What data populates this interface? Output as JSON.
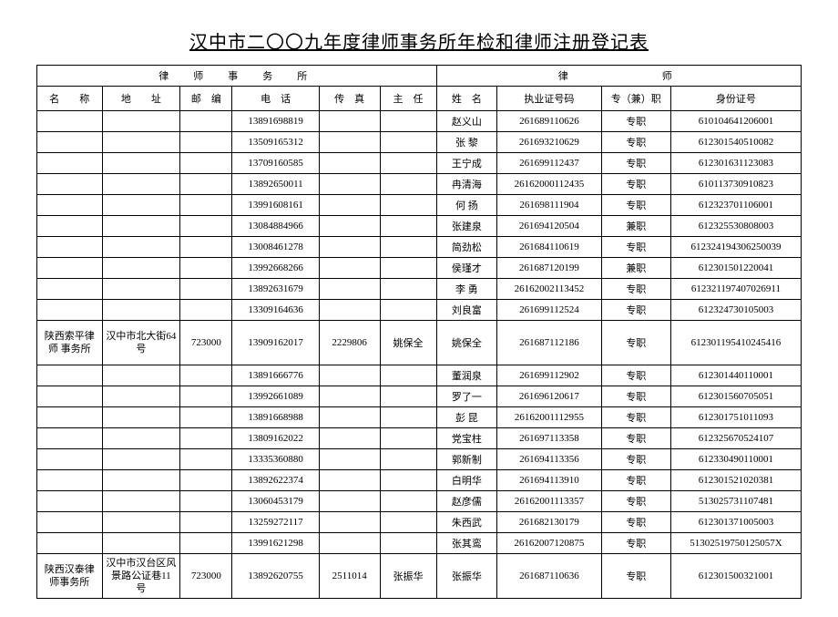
{
  "title": "汉中市二〇〇九年度律师事务所年检和律师注册登记表",
  "group_headers": {
    "left": "律　师　事　务　所",
    "right": "律　　　　　师"
  },
  "columns": {
    "name": "名　　称",
    "addr": "地　　址",
    "zip": "邮　编",
    "tel": "电　话",
    "fax": "传　真",
    "director": "主　任",
    "lname": "姓　名",
    "license": "执业证号码",
    "job": "专（兼）职",
    "id": "身份证号"
  },
  "rows": [
    {
      "name": "",
      "addr": "",
      "zip": "",
      "tel": "13891698819",
      "fax": "",
      "director": "",
      "lname": "赵义山",
      "license": "261689110626",
      "job": "专职",
      "id": "610104641206001"
    },
    {
      "name": "",
      "addr": "",
      "zip": "",
      "tel": "13509165312",
      "fax": "",
      "director": "",
      "lname": "张 黎",
      "license": "261693210629",
      "job": "专职",
      "id": "612301540510082"
    },
    {
      "name": "",
      "addr": "",
      "zip": "",
      "tel": "13709160585",
      "fax": "",
      "director": "",
      "lname": "王宁成",
      "license": "261699112437",
      "job": "专职",
      "id": "612301631123083"
    },
    {
      "name": "",
      "addr": "",
      "zip": "",
      "tel": "13892650011",
      "fax": "",
      "director": "",
      "lname": "冉清海",
      "license": "26162000112435",
      "job": "专职",
      "id": "610113730910823"
    },
    {
      "name": "",
      "addr": "",
      "zip": "",
      "tel": "13991608161",
      "fax": "",
      "director": "",
      "lname": "何 扬",
      "license": "261698111904",
      "job": "专职",
      "id": "612323701106001"
    },
    {
      "name": "",
      "addr": "",
      "zip": "",
      "tel": "13084884966",
      "fax": "",
      "director": "",
      "lname": "张建泉",
      "license": "261694120504",
      "job": "兼职",
      "id": "612325530808003"
    },
    {
      "name": "",
      "addr": "",
      "zip": "",
      "tel": "13008461278",
      "fax": "",
      "director": "",
      "lname": "简劲松",
      "license": "261684110619",
      "job": "专职",
      "id": "612324194306250039"
    },
    {
      "name": "",
      "addr": "",
      "zip": "",
      "tel": "13992668266",
      "fax": "",
      "director": "",
      "lname": "侯瑾才",
      "license": "261687120199",
      "job": "兼职",
      "id": "612301501220041"
    },
    {
      "name": "",
      "addr": "",
      "zip": "",
      "tel": "13892631679",
      "fax": "",
      "director": "",
      "lname": "李 勇",
      "license": "26162002113452",
      "job": "专职",
      "id": "612321197407026911"
    },
    {
      "name": "",
      "addr": "",
      "zip": "",
      "tel": "13309164636",
      "fax": "",
      "director": "",
      "lname": "刘良富",
      "license": "261699112524",
      "job": "专职",
      "id": "612324730105003"
    },
    {
      "name": "陕西索平律师\n事务所",
      "addr": "汉中市北大街64 号",
      "zip": "723000",
      "tel": "13909162017",
      "fax": "2229806",
      "director": "姚保全",
      "lname": "姚保全",
      "license": "261687112186",
      "job": "专职",
      "id": "612301195410245416"
    },
    {
      "name": "",
      "addr": "",
      "zip": "",
      "tel": "13891666776",
      "fax": "",
      "director": "",
      "lname": "董润泉",
      "license": "261699112902",
      "job": "专职",
      "id": "612301440110001"
    },
    {
      "name": "",
      "addr": "",
      "zip": "",
      "tel": "13992661089",
      "fax": "",
      "director": "",
      "lname": "罗了一",
      "license": "261696120617",
      "job": "专职",
      "id": "612301560705051"
    },
    {
      "name": "",
      "addr": "",
      "zip": "",
      "tel": "13891668988",
      "fax": "",
      "director": "",
      "lname": "彭 昆",
      "license": "26162001112955",
      "job": "专职",
      "id": "612301751011093"
    },
    {
      "name": "",
      "addr": "",
      "zip": "",
      "tel": "13809162022",
      "fax": "",
      "director": "",
      "lname": "党宝柱",
      "license": "261697113358",
      "job": "专职",
      "id": "612325670524107"
    },
    {
      "name": "",
      "addr": "",
      "zip": "",
      "tel": "13335360880",
      "fax": "",
      "director": "",
      "lname": "郭新制",
      "license": "261694113356",
      "job": "专职",
      "id": "612330490110001"
    },
    {
      "name": "",
      "addr": "",
      "zip": "",
      "tel": "13892622374",
      "fax": "",
      "director": "",
      "lname": "白明华",
      "license": "261694113910",
      "job": "专职",
      "id": "612301521020381"
    },
    {
      "name": "",
      "addr": "",
      "zip": "",
      "tel": "13060453179",
      "fax": "",
      "director": "",
      "lname": "赵彦儒",
      "license": "26162001113357",
      "job": "专职",
      "id": "513025731107481"
    },
    {
      "name": "",
      "addr": "",
      "zip": "",
      "tel": "13259272117",
      "fax": "",
      "director": "",
      "lname": "朱西武",
      "license": "261682130179",
      "job": "专职",
      "id": "612301371005003"
    },
    {
      "name": "",
      "addr": "",
      "zip": "",
      "tel": "13991621298",
      "fax": "",
      "director": "",
      "lname": "张其鸾",
      "license": "26162007120875",
      "job": "专职",
      "id": "51302519750125057X"
    },
    {
      "name": "陕西汉泰律师事务所",
      "addr": "汉中市汉台区风景路公证巷11 号",
      "zip": "723000",
      "tel": "13892620755",
      "fax": "2511014",
      "director": "张振华",
      "lname": "张振华",
      "license": "261687110636",
      "job": "专职",
      "id": "612301500321001"
    }
  ]
}
